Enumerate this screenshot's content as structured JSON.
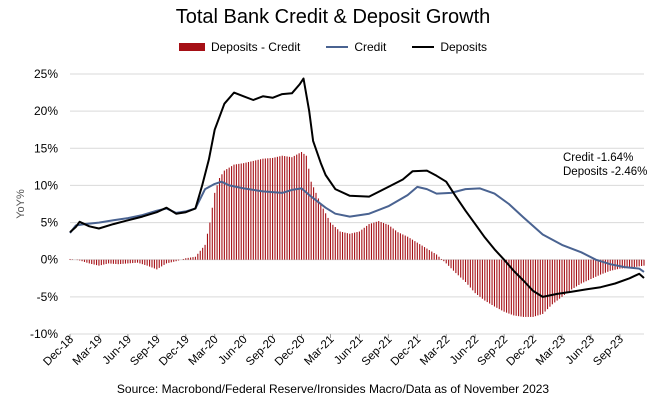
{
  "title": "Total Bank Credit & Deposit Growth",
  "source": "Source: Macrobond/Federal Reserve/Ironsides Macro/Data as of November 2023",
  "colors": {
    "spread": "#a50f15",
    "credit": "#4a6391",
    "deposits": "#000000",
    "grid": "#d9d9d9"
  },
  "chart_data": {
    "type": "bar+line",
    "title": "Total Bank Credit & Deposit Growth",
    "ylabel": "YoY%",
    "xlabel": "",
    "ylim": [
      -10,
      25
    ],
    "y_ticks": [
      "25%",
      "20%",
      "15%",
      "10%",
      "5%",
      "0%",
      "-5%",
      "-10%"
    ],
    "x_ticks": [
      "Dec-18",
      "Mar-19",
      "Jun-19",
      "Sep-19",
      "Dec-19",
      "Mar-20",
      "Jun-20",
      "Sep-20",
      "Dec-20",
      "Mar-21",
      "Jun-21",
      "Sep-21",
      "Dec-21",
      "Mar-22",
      "Jun-22",
      "Sep-22",
      "Dec-22",
      "Mar-23",
      "Jun-23",
      "Sep-23"
    ],
    "x_range": [
      0,
      59.5
    ],
    "legend": [
      "Deposits - Credit",
      "Credit",
      "Deposits"
    ],
    "legend_position": "top-center",
    "annotations": [
      "Credit -1.64%",
      "Deposits -2.46%"
    ],
    "series": [
      {
        "name": "Credit",
        "type": "line",
        "points": [
          [
            0,
            3.6
          ],
          [
            0.6,
            4.6
          ],
          [
            1.5,
            4.8
          ],
          [
            3,
            5.0
          ],
          [
            4.5,
            5.3
          ],
          [
            6,
            5.6
          ],
          [
            7.5,
            6.0
          ],
          [
            9,
            6.6
          ],
          [
            10,
            6.9
          ],
          [
            11,
            6.3
          ],
          [
            12,
            6.5
          ],
          [
            13,
            6.9
          ],
          [
            14,
            9.5
          ],
          [
            15,
            10.2
          ],
          [
            15.7,
            10.5
          ],
          [
            16.5,
            10.0
          ],
          [
            18,
            9.6
          ],
          [
            20,
            9.2
          ],
          [
            22,
            9.0
          ],
          [
            23,
            9.4
          ],
          [
            24,
            9.6
          ],
          [
            25,
            8.5
          ],
          [
            26.5,
            7.0
          ],
          [
            27.5,
            6.2
          ],
          [
            29,
            5.8
          ],
          [
            31,
            6.2
          ],
          [
            33,
            7.2
          ],
          [
            35,
            8.7
          ],
          [
            36,
            9.8
          ],
          [
            37,
            9.5
          ],
          [
            38,
            8.9
          ],
          [
            39.5,
            9.0
          ],
          [
            41,
            9.5
          ],
          [
            42.5,
            9.6
          ],
          [
            44,
            8.9
          ],
          [
            45.5,
            7.5
          ],
          [
            47,
            5.7
          ],
          [
            49,
            3.4
          ],
          [
            51,
            2.0
          ],
          [
            53,
            1.0
          ],
          [
            54.5,
            0
          ],
          [
            56,
            -0.6
          ],
          [
            57.5,
            -1.0
          ],
          [
            59,
            -1.2
          ],
          [
            59.5,
            -1.64
          ]
        ]
      },
      {
        "name": "Deposits",
        "type": "line",
        "points": [
          [
            0,
            3.7
          ],
          [
            0.6,
            4.4
          ],
          [
            1,
            5.1
          ],
          [
            2,
            4.5
          ],
          [
            3,
            4.2
          ],
          [
            4.5,
            4.8
          ],
          [
            6,
            5.3
          ],
          [
            7.5,
            5.8
          ],
          [
            9,
            6.4
          ],
          [
            10,
            7.0
          ],
          [
            11,
            6.2
          ],
          [
            12,
            6.4
          ],
          [
            13,
            6.9
          ],
          [
            13.7,
            10.0
          ],
          [
            14.4,
            13.5
          ],
          [
            15,
            17.5
          ],
          [
            16,
            21.0
          ],
          [
            17,
            22.5
          ],
          [
            18,
            22.0
          ],
          [
            19,
            21.5
          ],
          [
            20,
            22.0
          ],
          [
            21,
            21.8
          ],
          [
            22,
            22.3
          ],
          [
            23,
            22.4
          ],
          [
            23.8,
            23.6
          ],
          [
            24.2,
            24.4
          ],
          [
            24.8,
            20.0
          ],
          [
            25.2,
            16.0
          ],
          [
            26,
            13.0
          ],
          [
            26.5,
            11.4
          ],
          [
            27.5,
            9.5
          ],
          [
            29,
            8.6
          ],
          [
            31,
            8.5
          ],
          [
            33,
            9.8
          ],
          [
            34.5,
            10.8
          ],
          [
            35.5,
            11.9
          ],
          [
            37,
            12.0
          ],
          [
            38,
            11.3
          ],
          [
            39,
            10.5
          ],
          [
            40,
            8.5
          ],
          [
            41,
            6.6
          ],
          [
            42,
            4.8
          ],
          [
            43,
            3.0
          ],
          [
            44,
            1.4
          ],
          [
            45,
            0
          ],
          [
            46,
            -1.5
          ],
          [
            47,
            -2.8
          ],
          [
            48,
            -4.2
          ],
          [
            49,
            -5.0
          ],
          [
            50.5,
            -4.6
          ],
          [
            52,
            -4.3
          ],
          [
            53.5,
            -4.0
          ],
          [
            55,
            -3.7
          ],
          [
            56.5,
            -3.2
          ],
          [
            58,
            -2.5
          ],
          [
            59,
            -1.9
          ],
          [
            59.5,
            -2.46
          ]
        ]
      }
    ],
    "bars": {
      "name": "Deposits - Credit",
      "type": "bar",
      "points": [
        [
          0,
          0.1
        ],
        [
          1,
          -0.1
        ],
        [
          2,
          -0.5
        ],
        [
          3,
          -0.8
        ],
        [
          4,
          -0.5
        ],
        [
          5,
          -0.6
        ],
        [
          6,
          -0.5
        ],
        [
          7,
          -0.4
        ],
        [
          8,
          -0.8
        ],
        [
          9,
          -1.3
        ],
        [
          10,
          -0.5
        ],
        [
          11,
          -0.2
        ],
        [
          12,
          0.2
        ],
        [
          13,
          0.4
        ],
        [
          14,
          2.0
        ],
        [
          14.5,
          5.0
        ],
        [
          15,
          9.0
        ],
        [
          15.5,
          11.0
        ],
        [
          16,
          12.0
        ],
        [
          17,
          12.8
        ],
        [
          18,
          13.0
        ],
        [
          19,
          13.3
        ],
        [
          20,
          13.6
        ],
        [
          21,
          13.7
        ],
        [
          22,
          14.0
        ],
        [
          23,
          13.8
        ],
        [
          24,
          14.5
        ],
        [
          24.5,
          14.0
        ],
        [
          25,
          10.5
        ],
        [
          26,
          7.5
        ],
        [
          27,
          5.0
        ],
        [
          28,
          3.8
        ],
        [
          29,
          3.5
        ],
        [
          30,
          3.8
        ],
        [
          31,
          4.8
        ],
        [
          32,
          5.2
        ],
        [
          33,
          4.7
        ],
        [
          34,
          3.7
        ],
        [
          35,
          3.1
        ],
        [
          36,
          2.3
        ],
        [
          37,
          1.5
        ],
        [
          38,
          0.7
        ],
        [
          39,
          -0.5
        ],
        [
          40,
          -1.8
        ],
        [
          41,
          -3.0
        ],
        [
          42,
          -4.5
        ],
        [
          43,
          -5.5
        ],
        [
          44,
          -6.3
        ],
        [
          45,
          -7.0
        ],
        [
          46,
          -7.5
        ],
        [
          47,
          -7.7
        ],
        [
          48,
          -7.7
        ],
        [
          49,
          -7.3
        ],
        [
          50,
          -6.0
        ],
        [
          51,
          -5.0
        ],
        [
          52,
          -4.0
        ],
        [
          53,
          -3.2
        ],
        [
          54,
          -2.6
        ],
        [
          55,
          -2.0
        ],
        [
          56,
          -1.5
        ],
        [
          57,
          -1.2
        ],
        [
          58,
          -1.1
        ],
        [
          59,
          -0.9
        ],
        [
          59.5,
          -0.8
        ]
      ]
    }
  }
}
